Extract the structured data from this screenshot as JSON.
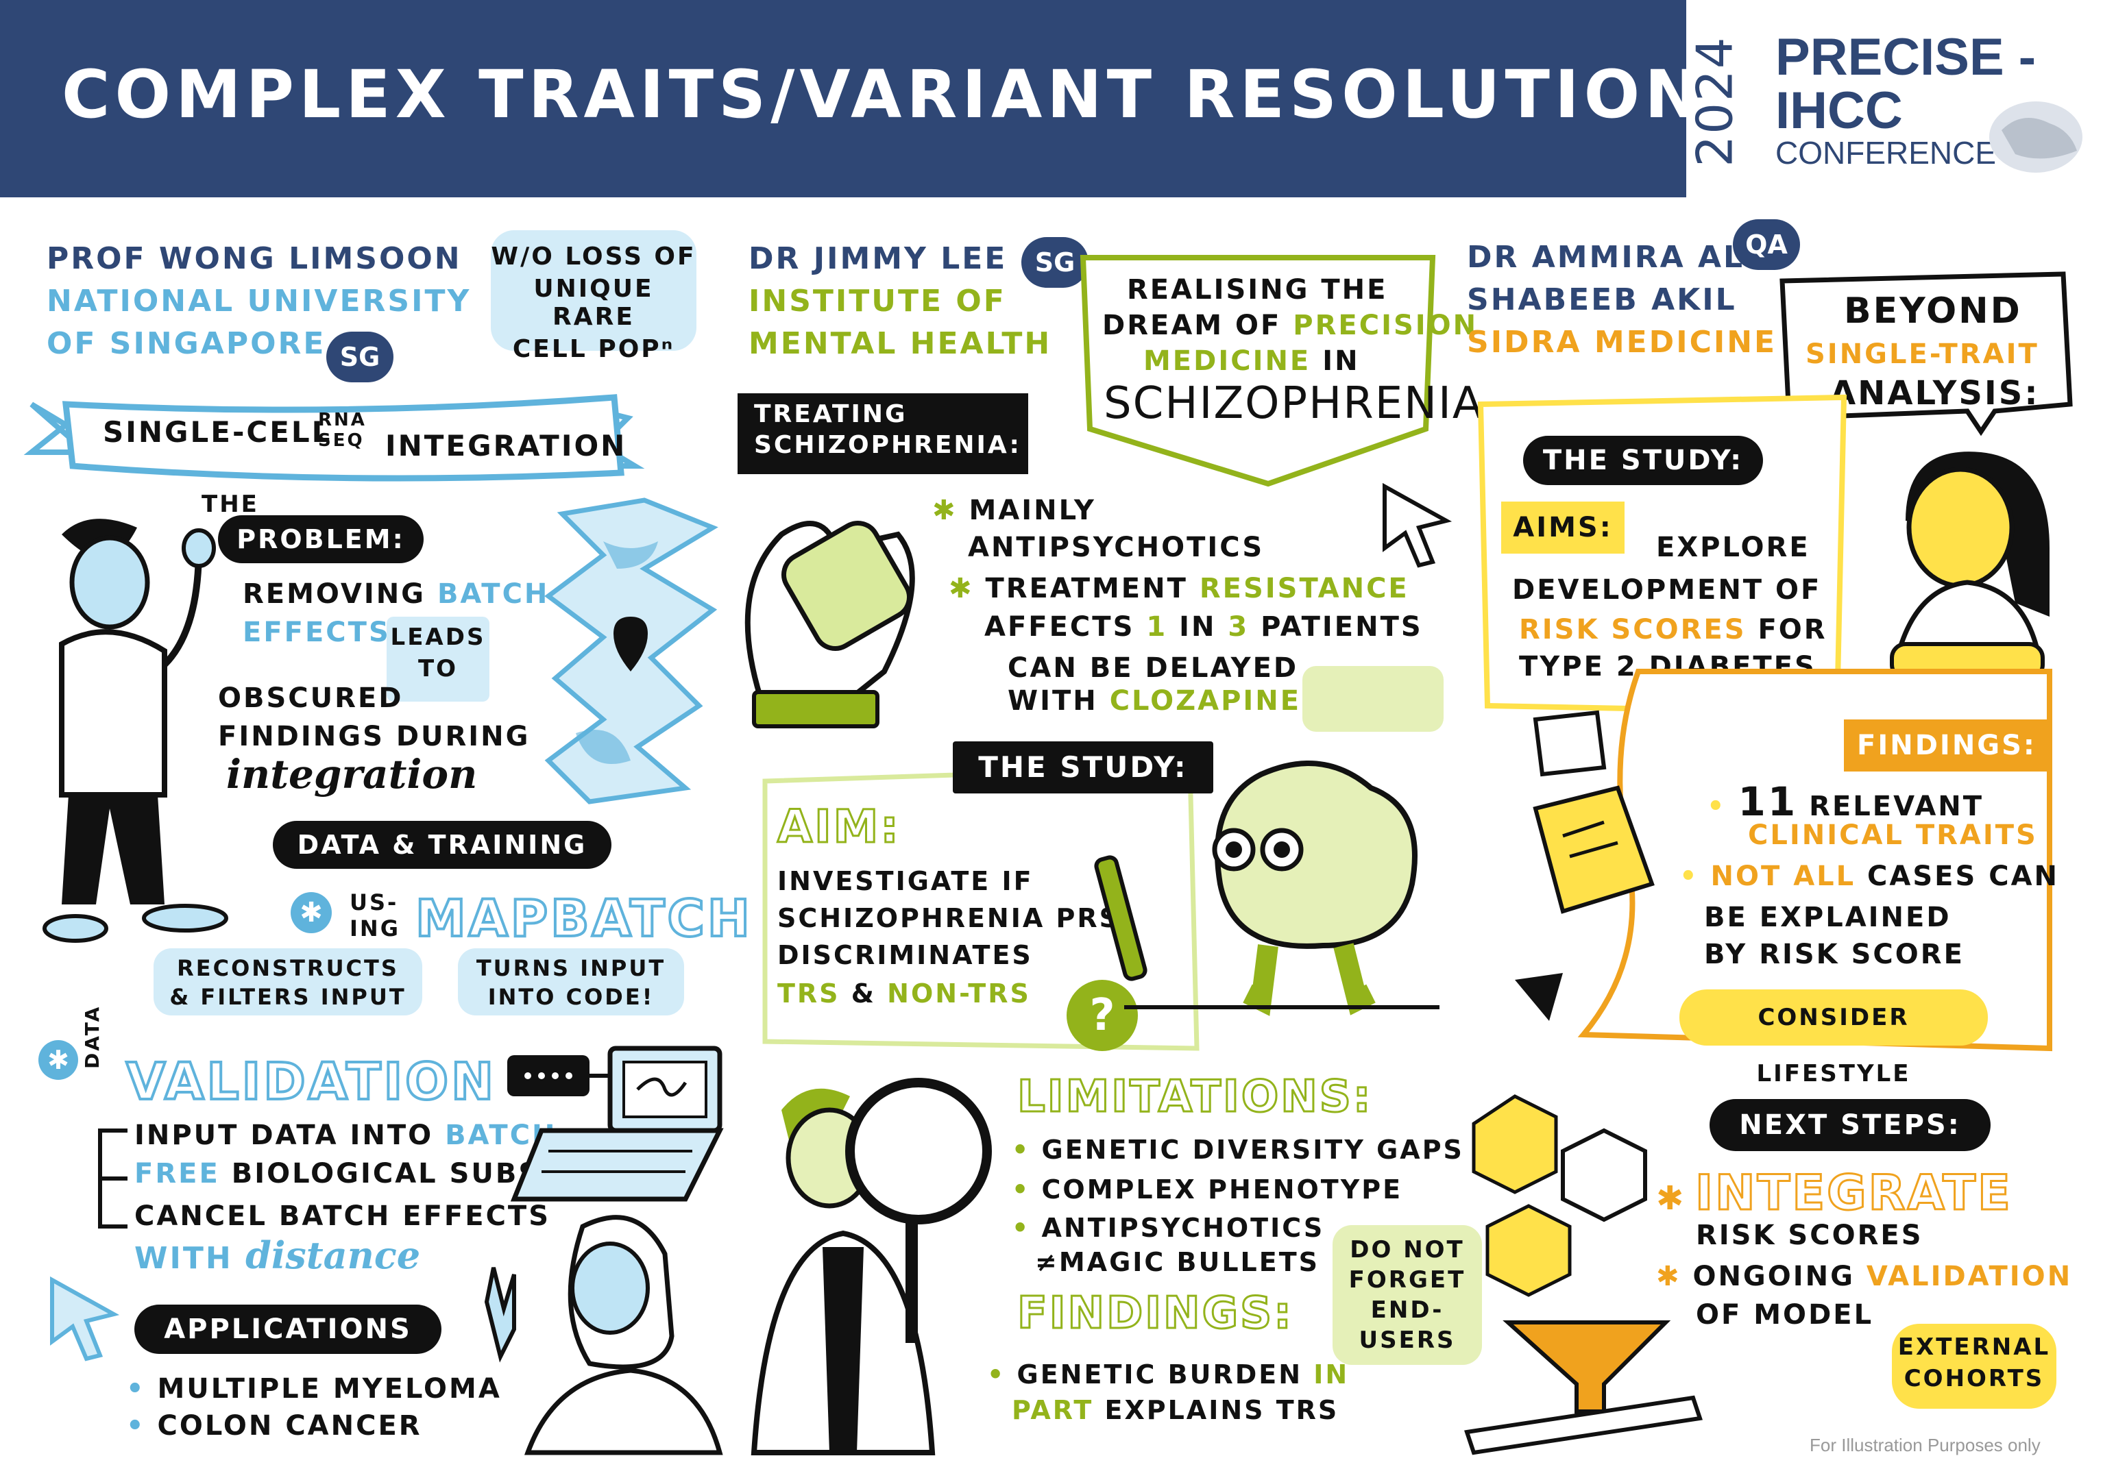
{
  "header": {
    "title": "COMPLEX TRAITS/VARIANT RESOLUTION",
    "logo_year": "2024",
    "logo_line1": "PRECISE -",
    "logo_line2": "IHCC",
    "logo_line3": "CONFERENCE"
  },
  "col1": {
    "speaker": "PROF WONG LIMSOON",
    "institution_l1": "NATIONAL UNIVERSITY",
    "institution_l2": "OF SINGAPORE",
    "country": "SG",
    "bubble_l1": "W/O LOSS OF",
    "bubble_l2": "UNIQUE RARE",
    "bubble_l3": "CELL POPⁿ",
    "banner_a": "SINGLE-CELL",
    "banner_rna": "RNA",
    "banner_seq": "SEQ",
    "banner_b": "INTEGRATION",
    "the": "THE",
    "problem_label": "PROBLEM:",
    "prob_l1a": "REMOVING ",
    "prob_l1b": "BATCH",
    "prob_l2": "EFFECTS",
    "leads": "LEADS",
    "to": "TO",
    "obs_l1": "OBSCURED",
    "obs_l2": "FINDINGS DURING",
    "obs_l3": "integration",
    "data_training": "DATA & TRAINING",
    "using_a": "US-",
    "using_b": "ING",
    "mapbatch": "MAPBATCH",
    "box1_l1": "RECONSTRUCTS",
    "box1_l2": "& FILTERS INPUT",
    "box2_l1": "TURNS INPUT",
    "box2_l2": "INTO CODE!",
    "data_vert": "DATA",
    "validation": "VALIDATION",
    "val_l1a": "INPUT DATA INTO ",
    "val_l1b": "BATCH",
    "val_l1c": " —",
    "val_l2a": "FREE",
    "val_l2b": " BIOLOGICAL SUBSPACE",
    "val_l3": "CANCEL BATCH EFFECTS",
    "val_l4a": "WITH ",
    "val_l4b": "distance",
    "applications": "APPLICATIONS",
    "app1": "MULTIPLE MYELOMA",
    "app2": "COLON CANCER"
  },
  "col2": {
    "speaker": "DR JIMMY LEE",
    "country": "SG",
    "inst_l1": "INSTITUTE OF",
    "inst_l2": "MENTAL HEALTH",
    "banner_l1": "REALISING THE",
    "banner_l2a": "DREAM OF ",
    "banner_l2b": "PRECISION",
    "banner_l3a": "MEDICINE",
    "banner_l3b": " IN",
    "banner_l4": "SCHIZOPHRENIA",
    "treat_l1": "TREATING",
    "treat_l2": "SCHIZOPHRENIA:",
    "b1_l1": "MAINLY",
    "b1_l2": "ANTIPSYCHOTICS",
    "b2_l1a": "TREATMENT ",
    "b2_l1b": "RESISTANCE",
    "b2_l2a": "AFFECTS ",
    "b2_l2b": "1",
    "b2_l2c": " IN ",
    "b2_l2d": "3",
    "b2_l2e": " PATIENTS",
    "b3_l1": "CAN BE DELAYED",
    "b3_l2a": "WITH ",
    "b3_l2b": "CLOZAPINE",
    "study_label": "THE STUDY:",
    "aim_label": "AIM:",
    "aim_l1": "INVESTIGATE IF",
    "aim_l2": "SCHIZOPHRENIA PRS",
    "aim_l3": "DISCRIMINATES",
    "aim_l4a": "TRS",
    "aim_l4b": " & ",
    "aim_l4c": "NON-TRS",
    "qmark": "?",
    "limitations": "LIMITATIONS:",
    "lim1": "GENETIC DIVERSITY GAPS",
    "lim2": "COMPLEX PHENOTYPE",
    "lim3a": "ANTIPSYCHOTICS",
    "lim3b": "≠MAGIC BULLETS",
    "findings": "FINDINGS:",
    "find_l1a": "GENETIC BURDEN ",
    "find_l1b": "IN",
    "find_l2a": "PART",
    "find_l2b": " EXPLAINS TRS",
    "note_l1": "DO NOT",
    "note_l2": "FORGET",
    "note_l3": "END-",
    "note_l4": "USERS"
  },
  "col3": {
    "speaker_l1": "DR AMMIRA AL",
    "speaker_l2": "SHABEEB AKIL",
    "country": "QA",
    "inst": "SIDRA MEDICINE",
    "beyond_l1": "BEYOND",
    "beyond_l2a": "SINGLE",
    "beyond_l2b": "-TRAIT",
    "beyond_l3": "ANALYSIS:",
    "study_label": "THE STUDY:",
    "aims_label": "AIMS:",
    "aims_l1": "EXPLORE",
    "aims_l2": "DEVELOPMENT OF",
    "aims_l3a": "RISK SCORES",
    "aims_l3b": " FOR",
    "aims_l4": "TYPE 2 DIABETES",
    "findings_label": "FINDINGS:",
    "f1a": "11",
    "f1b": " RELEVANT",
    "f1c": "CLINICAL TRAITS",
    "f2a": "NOT ALL",
    "f2b": " CASES CAN",
    "f2c": "BE EXPLAINED",
    "f2d": "BY RISK SCORE",
    "lifestyle": "CONSIDER LIFESTYLE",
    "next_steps": "NEXT STEPS:",
    "ns1a": "INTEGRATE",
    "ns1b": "RISK SCORES",
    "ns2a": "ONGOING ",
    "ns2b": "VALIDATION",
    "ns2c": "OF MODEL",
    "ext_l1": "EXTERNAL",
    "ext_l2": "COHORTS"
  },
  "footer": {
    "disclaimer": "For Illustration Purposes only"
  },
  "colors": {
    "navy": "#2f4775",
    "blue": "#5fb3dc",
    "lightblue": "#d3ecf8",
    "green": "#93b31b",
    "orange": "#f0a21e",
    "yellow": "#ffe14a",
    "black": "#111111"
  }
}
